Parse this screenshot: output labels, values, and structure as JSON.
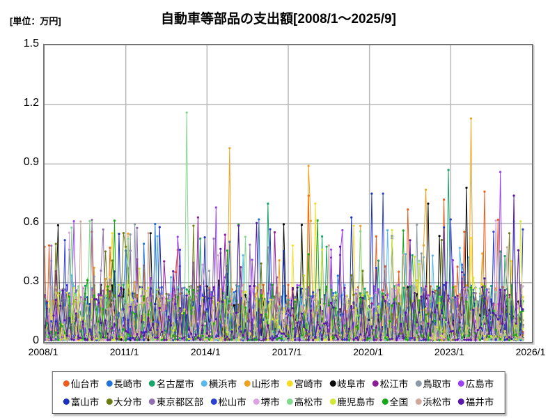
{
  "title": "自動車等部品の支出額[2008/1～2025/9]",
  "unit_label": "[単位：万円]",
  "chart_data": {
    "type": "line",
    "title": "自動車等部品の支出額[2008/1～2025/9]",
    "unit": "万円",
    "x_start": "2008/1",
    "x_end": "2025/9",
    "x_axis_end": "2026/1",
    "months_on_axis": 216,
    "data_months": 213,
    "ylim": [
      0,
      1.5
    ],
    "ytick_values": [
      0,
      0.3,
      0.6,
      0.9,
      1.2,
      1.5
    ],
    "ytick_labels": [
      "0",
      "0.3",
      "0.6",
      "0.9",
      "1.2",
      "1.5"
    ],
    "xtick_labels": [
      "2008/1",
      "2011/1",
      "2014/1",
      "2017/1",
      "2020/1",
      "2023/1",
      "2026/1"
    ],
    "grid": true,
    "grid_color": "#b8b8b8",
    "axis_border_color": "#757575",
    "legend_position": "bottom",
    "marker": "circle",
    "series": [
      {
        "name": "仙台市",
        "color": "#ed5a1e"
      },
      {
        "name": "長崎市",
        "color": "#2273d9"
      },
      {
        "name": "名古屋市",
        "color": "#17a36a"
      },
      {
        "name": "横浜市",
        "color": "#57b8ec"
      },
      {
        "name": "山形市",
        "color": "#f0a11b"
      },
      {
        "name": "宮崎市",
        "color": "#f7dc25"
      },
      {
        "name": "岐阜市",
        "color": "#0a0a0a"
      },
      {
        "name": "松江市",
        "color": "#8d1b99"
      },
      {
        "name": "鳥取市",
        "color": "#8b98a5"
      },
      {
        "name": "広島市",
        "color": "#9c41ef"
      },
      {
        "name": "富山市",
        "color": "#1b2fc0"
      },
      {
        "name": "大分市",
        "color": "#697c12"
      },
      {
        "name": "東京都区部",
        "color": "#9070b0"
      },
      {
        "name": "松山市",
        "color": "#2b3fd0"
      },
      {
        "name": "堺市",
        "color": "#dba3e2"
      },
      {
        "name": "高松市",
        "color": "#82d98d"
      },
      {
        "name": "鹿児島市",
        "color": "#d3e93a"
      },
      {
        "name": "全国",
        "color": "#17a817"
      },
      {
        "name": "浜松市",
        "color": "#d0a99a"
      },
      {
        "name": "福井市",
        "color": "#5a17a8"
      }
    ],
    "legend_rows": [
      [
        "仙台市",
        "長崎市",
        "名古屋市",
        "横浜市",
        "山形市",
        "宮崎市",
        "岐阜市",
        "松江市",
        "鳥取市",
        "広島市"
      ],
      [
        "富山市",
        "大分市",
        "東京都区部",
        "松山市",
        "堺市",
        "高松市",
        "鹿児島市",
        "全国",
        "浜松市",
        "福井市"
      ]
    ],
    "baseline": {
      "description": "All 20 series fluctuate as monthly noise mostly between 0 and 0.3 with frequent single-month spikes between 0.3 and 0.62",
      "noise_floor": 0.01,
      "noise_amplitude": 0.28,
      "noise_exponent": 2.5,
      "spike_probability": 0.04,
      "spike_range": [
        0.28,
        0.62
      ]
    },
    "notable_peaks": [
      {
        "series": "高松市",
        "date": "2013/4",
        "value": 1.16
      },
      {
        "series": "山形市",
        "date": "2014/11",
        "value": 0.98
      },
      {
        "series": "山形市",
        "date": "2023/10",
        "value": 1.13
      },
      {
        "series": "山形市",
        "date": "2017/10",
        "value": 0.89
      },
      {
        "series": "仙台市",
        "date": "2017/10",
        "value": 0.74
      },
      {
        "series": "宮崎市",
        "date": "2018/1",
        "value": 0.7
      },
      {
        "series": "富山市",
        "date": "2020/2",
        "value": 0.75
      },
      {
        "series": "松山市",
        "date": "2020/7",
        "value": 0.75
      },
      {
        "series": "仙台市",
        "date": "2021/6",
        "value": 0.67
      },
      {
        "series": "山形市",
        "date": "2022/2",
        "value": 0.77
      },
      {
        "series": "岐阜市",
        "date": "2022/3",
        "value": 0.7
      },
      {
        "series": "名古屋市",
        "date": "2022/12",
        "value": 0.87
      },
      {
        "series": "仙台市",
        "date": "2022/10",
        "value": 0.72
      },
      {
        "series": "岐阜市",
        "date": "2023/8",
        "value": 0.78
      },
      {
        "series": "広島市",
        "date": "2024/11",
        "value": 0.86
      },
      {
        "series": "仙台市",
        "date": "2024/4",
        "value": 0.76
      },
      {
        "series": "松江市",
        "date": "2013/9",
        "value": 0.63
      },
      {
        "series": "広島市",
        "date": "2009/2",
        "value": 0.61
      },
      {
        "series": "宮崎市",
        "date": "2010/7",
        "value": 0.55
      },
      {
        "series": "岐阜市",
        "date": "2011/12",
        "value": 0.55
      },
      {
        "series": "広島市",
        "date": "2014/5",
        "value": 0.68
      },
      {
        "series": "長崎市",
        "date": "2015/12",
        "value": 0.62
      },
      {
        "series": "名古屋市",
        "date": "2016/4",
        "value": 0.7
      },
      {
        "series": "富山市",
        "date": "2019/5",
        "value": 0.63
      },
      {
        "series": "福井市",
        "date": "2025/5",
        "value": 0.74
      },
      {
        "series": "横浜市",
        "date": "2025/5",
        "value": 0.61
      },
      {
        "series": "鹿児島市",
        "date": "2025/8",
        "value": 0.61
      }
    ]
  }
}
